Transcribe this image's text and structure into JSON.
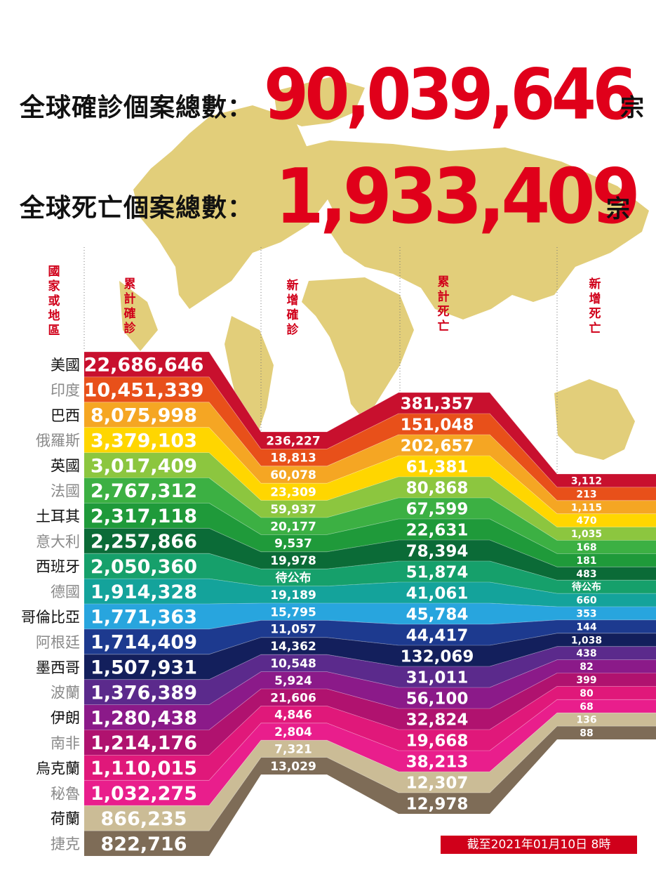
{
  "headline": {
    "cases_label": "全球確診個案總數：",
    "cases_value": "90,039,646",
    "cases_unit": "宗",
    "deaths_label": "全球死亡個案總數：",
    "deaths_value": "1,933,409",
    "deaths_unit": "宗"
  },
  "column_headers": {
    "country": "國家或地區",
    "cumulative_cases": "累計確診",
    "new_cases": "新增確診",
    "cumulative_deaths": "累計死亡",
    "new_deaths": "新增死亡"
  },
  "footer": {
    "as_of": "截至2021年01月10日 8時"
  },
  "colors": {
    "title_red": "#e0001a",
    "map": "#e2ce7a",
    "band_colors": [
      "#c8102e",
      "#e8501a",
      "#f5a623",
      "#ffd600",
      "#8cc63f",
      "#3cb043",
      "#1f9a3a",
      "#0b6b37",
      "#16a06b",
      "#14a39b",
      "#28a5de",
      "#1d3a8f",
      "#131f5c",
      "#5b2a8c",
      "#8b1a89",
      "#b0126f",
      "#e0187a",
      "#e91e8c",
      "#cbbc96",
      "#7e6c57"
    ]
  },
  "chart_data": {
    "type": "table",
    "title": "",
    "columns": [
      "國家或地區",
      "累計確診",
      "新增確診",
      "累計死亡",
      "新增死亡"
    ],
    "rows": [
      {
        "country": "美國",
        "cumulative_cases": "22,686,646",
        "new_cases": "236,227",
        "cumulative_deaths": "381,357",
        "new_deaths": "3,112"
      },
      {
        "country": "印度",
        "cumulative_cases": "10,451,339",
        "new_cases": "18,813",
        "cumulative_deaths": "151,048",
        "new_deaths": "213"
      },
      {
        "country": "巴西",
        "cumulative_cases": "8,075,998",
        "new_cases": "60,078",
        "cumulative_deaths": "202,657",
        "new_deaths": "1,115"
      },
      {
        "country": "俄羅斯",
        "cumulative_cases": "3,379,103",
        "new_cases": "23,309",
        "cumulative_deaths": "61,381",
        "new_deaths": "470"
      },
      {
        "country": "英國",
        "cumulative_cases": "3,017,409",
        "new_cases": "59,937",
        "cumulative_deaths": "80,868",
        "new_deaths": "1,035"
      },
      {
        "country": "法國",
        "cumulative_cases": "2,767,312",
        "new_cases": "20,177",
        "cumulative_deaths": "67,599",
        "new_deaths": "168"
      },
      {
        "country": "土耳其",
        "cumulative_cases": "2,317,118",
        "new_cases": "9,537",
        "cumulative_deaths": "22,631",
        "new_deaths": "181"
      },
      {
        "country": "意大利",
        "cumulative_cases": "2,257,866",
        "new_cases": "19,978",
        "cumulative_deaths": "78,394",
        "new_deaths": "483"
      },
      {
        "country": "西班牙",
        "cumulative_cases": "2,050,360",
        "new_cases": "待公布",
        "cumulative_deaths": "51,874",
        "new_deaths": "待公布"
      },
      {
        "country": "德國",
        "cumulative_cases": "1,914,328",
        "new_cases": "19,189",
        "cumulative_deaths": "41,061",
        "new_deaths": "660"
      },
      {
        "country": "哥倫比亞",
        "cumulative_cases": "1,771,363",
        "new_cases": "15,795",
        "cumulative_deaths": "45,784",
        "new_deaths": "353"
      },
      {
        "country": "阿根廷",
        "cumulative_cases": "1,714,409",
        "new_cases": "11,057",
        "cumulative_deaths": "44,417",
        "new_deaths": "144"
      },
      {
        "country": "墨西哥",
        "cumulative_cases": "1,507,931",
        "new_cases": "14,362",
        "cumulative_deaths": "132,069",
        "new_deaths": "1,038"
      },
      {
        "country": "波蘭",
        "cumulative_cases": "1,376,389",
        "new_cases": "10,548",
        "cumulative_deaths": "31,011",
        "new_deaths": "438"
      },
      {
        "country": "伊朗",
        "cumulative_cases": "1,280,438",
        "new_cases": "5,924",
        "cumulative_deaths": "56,100",
        "new_deaths": "82"
      },
      {
        "country": "南非",
        "cumulative_cases": "1,214,176",
        "new_cases": "21,606",
        "cumulative_deaths": "32,824",
        "new_deaths": "399"
      },
      {
        "country": "烏克蘭",
        "cumulative_cases": "1,110,015",
        "new_cases": "4,846",
        "cumulative_deaths": "19,668",
        "new_deaths": "80"
      },
      {
        "country": "秘魯",
        "cumulative_cases": "1,032,275",
        "new_cases": "2,804",
        "cumulative_deaths": "38,213",
        "new_deaths": "68"
      },
      {
        "country": "荷蘭",
        "cumulative_cases": "866,235",
        "new_cases": "7,321",
        "cumulative_deaths": "12,307",
        "new_deaths": "136"
      },
      {
        "country": "捷克",
        "cumulative_cases": "822,716",
        "new_cases": "13,029",
        "cumulative_deaths": "12,978",
        "new_deaths": "88"
      }
    ]
  }
}
